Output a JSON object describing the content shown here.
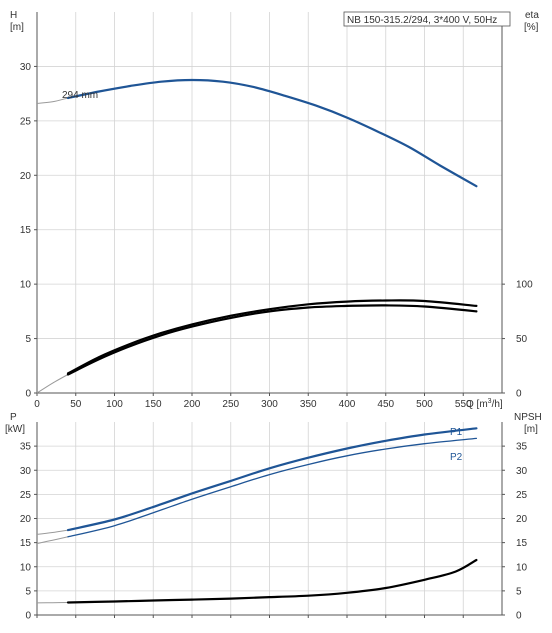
{
  "colors": {
    "pump_curve": "#1f5596",
    "efficiency_curve": "#000000",
    "grid": "#d4d4d4",
    "faint_curve": "#9a9a9a"
  },
  "chart_data": [
    {
      "type": "line",
      "panel": "head-efficiency",
      "title": "NB 150-315.2/294, 3*400 V, 50Hz",
      "xlabel": "Q [m³/h]",
      "xlabel_text": "Q [m",
      "xlabel_unit_sup": "3",
      "xlabel_unit_rest": "/h]",
      "ylabel_left_name": "H",
      "ylabel_left_unit": "[m]",
      "ylabel_right_name": "eta",
      "ylabel_right_unit": "[%]",
      "xlim": [
        0,
        600
      ],
      "ylim": [
        0,
        35
      ],
      "ylim_right": [
        0,
        350
      ],
      "x_ticks": [
        0,
        50,
        100,
        150,
        200,
        250,
        300,
        350,
        400,
        450,
        500,
        550
      ],
      "y_ticks": [
        0,
        5,
        10,
        15,
        20,
        25,
        30
      ],
      "y_ticks_right": [
        0,
        50,
        100
      ],
      "grid": true,
      "annotation": "294 mm",
      "series": [
        {
          "name": "294 mm",
          "color": "#1f5596",
          "axis": "left",
          "x": [
            40,
            80,
            120,
            160,
            200,
            240,
            280,
            320,
            360,
            400,
            440,
            480,
            520,
            567
          ],
          "y": [
            27.1,
            27.7,
            28.2,
            28.6,
            28.75,
            28.6,
            28.1,
            27.3,
            26.4,
            25.3,
            24.0,
            22.6,
            20.9,
            19.0
          ]
        },
        {
          "name": "",
          "color": "#000000",
          "axis": "right",
          "x": [
            40,
            80,
            120,
            160,
            200,
            250,
            300,
            350,
            400,
            450,
            500,
            567
          ],
          "y": [
            17,
            31,
            43,
            53,
            61,
            69,
            75,
            78.5,
            80,
            80.5,
            79.5,
            75
          ]
        },
        {
          "name": "",
          "color": "#000000",
          "axis": "right",
          "x": [
            40,
            80,
            120,
            160,
            200,
            250,
            300,
            350,
            400,
            450,
            500,
            567
          ],
          "y": [
            18,
            33,
            45,
            55,
            63,
            71,
            77,
            81.5,
            84,
            85,
            84.5,
            80
          ]
        }
      ],
      "faint_extensions": [
        {
          "color": "#9a9a9a",
          "axis": "left",
          "x": [
            0,
            20,
            40
          ],
          "y": [
            26.6,
            26.75,
            27.1
          ]
        },
        {
          "color": "#9a9a9a",
          "axis": "right",
          "x": [
            0,
            20,
            40
          ],
          "y": [
            0,
            9,
            17
          ]
        }
      ]
    },
    {
      "type": "line",
      "panel": "power-npsh",
      "xlim": [
        0,
        600
      ],
      "ylim": [
        0,
        40
      ],
      "ylim_right": [
        0,
        40
      ],
      "ylabel_left_name": "P",
      "ylabel_left_unit": "[kW]",
      "ylabel_right_name": "NPSH",
      "ylabel_right_unit": "[m]",
      "y_ticks": [
        0,
        5,
        10,
        15,
        20,
        25,
        30,
        35
      ],
      "y_ticks_right": [
        0,
        5,
        10,
        15,
        20,
        25,
        30,
        35
      ],
      "grid": true,
      "series": [
        {
          "name": "P1",
          "color": "#1f5596",
          "axis": "left",
          "x": [
            40,
            100,
            150,
            200,
            250,
            300,
            350,
            400,
            450,
            500,
            567
          ],
          "y": [
            17.6,
            19.8,
            22.4,
            25.2,
            27.8,
            30.4,
            32.6,
            34.5,
            36.1,
            37.4,
            38.7
          ]
        },
        {
          "name": "P2",
          "color": "#1f5596",
          "axis": "left",
          "x": [
            40,
            100,
            150,
            200,
            250,
            300,
            350,
            400,
            450,
            500,
            567
          ],
          "y": [
            16.2,
            18.5,
            21.2,
            24.0,
            26.6,
            29.1,
            31.2,
            33.0,
            34.4,
            35.5,
            36.6
          ]
        },
        {
          "name": "",
          "color": "#000000",
          "axis": "right",
          "x": [
            40,
            100,
            150,
            200,
            250,
            300,
            350,
            400,
            450,
            500,
            540,
            567
          ],
          "y": [
            2.6,
            2.8,
            3.0,
            3.2,
            3.4,
            3.7,
            4.0,
            4.6,
            5.6,
            7.3,
            9.0,
            11.4
          ]
        }
      ],
      "faint_extensions": [
        {
          "color": "#9a9a9a",
          "axis": "left",
          "x": [
            0,
            20,
            40
          ],
          "y": [
            16.7,
            17.1,
            17.6
          ]
        },
        {
          "color": "#9a9a9a",
          "axis": "left",
          "x": [
            0,
            20,
            40
          ],
          "y": [
            14.8,
            15.5,
            16.2
          ]
        },
        {
          "color": "#9a9a9a",
          "axis": "right",
          "x": [
            0,
            20,
            40
          ],
          "y": [
            2.5,
            2.55,
            2.6
          ]
        }
      ]
    }
  ]
}
